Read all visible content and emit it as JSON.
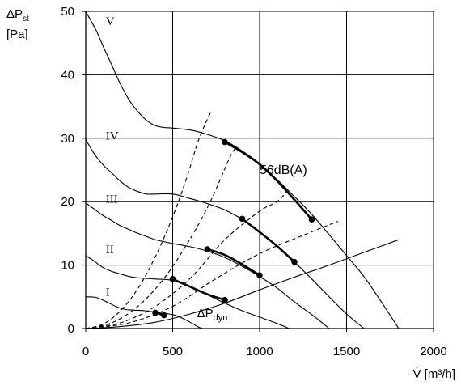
{
  "chart_data": {
    "type": "line",
    "title": "",
    "ylabel": {
      "main": "ΔP",
      "sub": "st",
      "unit": "[Pa]"
    },
    "xlabel": "V̇ [m³/h]",
    "xlim": [
      0,
      2000
    ],
    "ylim": [
      0,
      50
    ],
    "x_ticks": [
      0,
      500,
      1000,
      1500,
      2000
    ],
    "y_ticks": [
      0,
      10,
      20,
      30,
      40,
      50
    ],
    "grid": true,
    "colors": {
      "line": "#000000",
      "grid": "#000000",
      "background": "#ffffff"
    },
    "fan_curves": [
      {
        "label": "I",
        "label_at": [
          115,
          5.8
        ],
        "points": [
          [
            0,
            5
          ],
          [
            60,
            4.9
          ],
          [
            120,
            4.2
          ],
          [
            180,
            3.4
          ],
          [
            230,
            3.0
          ],
          [
            280,
            2.9
          ],
          [
            340,
            2.8
          ],
          [
            420,
            2.5
          ],
          [
            500,
            2.2
          ],
          [
            550,
            1.7
          ],
          [
            600,
            1.0
          ],
          [
            650,
            0.2
          ],
          [
            670,
            0
          ]
        ]
      },
      {
        "label": "II",
        "label_at": [
          115,
          12.5
        ],
        "points": [
          [
            0,
            11.5
          ],
          [
            50,
            10.6
          ],
          [
            100,
            9.6
          ],
          [
            150,
            9.0
          ],
          [
            200,
            8.6
          ],
          [
            250,
            8.2
          ],
          [
            300,
            8.0
          ],
          [
            350,
            7.9
          ],
          [
            400,
            7.8
          ],
          [
            500,
            7.6
          ],
          [
            600,
            6.6
          ],
          [
            700,
            5.3
          ],
          [
            800,
            4.0
          ],
          [
            900,
            2.8
          ],
          [
            1000,
            1.8
          ],
          [
            1100,
            0.8
          ],
          [
            1170,
            0
          ]
        ]
      },
      {
        "label": "III",
        "label_at": [
          115,
          20.5
        ],
        "points": [
          [
            0,
            19.8
          ],
          [
            50,
            18.8
          ],
          [
            100,
            17.8
          ],
          [
            150,
            17.0
          ],
          [
            200,
            16.2
          ],
          [
            250,
            15.6
          ],
          [
            300,
            15.0
          ],
          [
            350,
            14.5
          ],
          [
            400,
            14.0
          ],
          [
            450,
            13.7
          ],
          [
            500,
            13.4
          ],
          [
            600,
            12.9
          ],
          [
            700,
            12.2
          ],
          [
            800,
            11.2
          ],
          [
            900,
            9.8
          ],
          [
            1000,
            8.2
          ],
          [
            1100,
            6.4
          ],
          [
            1200,
            4.2
          ],
          [
            1300,
            2.2
          ],
          [
            1400,
            0
          ]
        ]
      },
      {
        "label": "IV",
        "label_at": [
          115,
          30.4
        ],
        "points": [
          [
            0,
            29.8
          ],
          [
            50,
            27.5
          ],
          [
            100,
            25.8
          ],
          [
            150,
            24.5
          ],
          [
            200,
            23.2
          ],
          [
            250,
            22.2
          ],
          [
            300,
            21.6
          ],
          [
            350,
            21.2
          ],
          [
            400,
            21.2
          ],
          [
            500,
            21.2
          ],
          [
            600,
            20.5
          ],
          [
            700,
            19.7
          ],
          [
            800,
            18.7
          ],
          [
            900,
            17.2
          ],
          [
            1000,
            15.2
          ],
          [
            1100,
            13.0
          ],
          [
            1200,
            10.5
          ],
          [
            1300,
            7.8
          ],
          [
            1400,
            5.0
          ],
          [
            1500,
            2.3
          ],
          [
            1600,
            0
          ]
        ]
      },
      {
        "label": "V",
        "label_at": [
          115,
          48.5
        ],
        "points": [
          [
            0,
            50
          ],
          [
            30,
            48.5
          ],
          [
            60,
            47.0
          ],
          [
            100,
            44.5
          ],
          [
            150,
            41.5
          ],
          [
            200,
            38.5
          ],
          [
            250,
            36.0
          ],
          [
            300,
            34.2
          ],
          [
            350,
            32.8
          ],
          [
            400,
            32.0
          ],
          [
            450,
            31.7
          ],
          [
            500,
            31.6
          ],
          [
            600,
            31.3
          ],
          [
            700,
            30.6
          ],
          [
            800,
            29.6
          ],
          [
            900,
            28.0
          ],
          [
            1000,
            26.0
          ],
          [
            1100,
            23.5
          ],
          [
            1200,
            20.8
          ],
          [
            1300,
            18.0
          ],
          [
            1400,
            14.8
          ],
          [
            1500,
            11.5
          ],
          [
            1600,
            8.2
          ],
          [
            1700,
            4.2
          ],
          [
            1800,
            0
          ]
        ]
      }
    ],
    "system_curves_dashed": [
      {
        "points": [
          [
            0,
            0
          ],
          [
            100,
            0.7
          ],
          [
            200,
            2.8
          ],
          [
            300,
            6.3
          ],
          [
            400,
            11.3
          ],
          [
            500,
            17.6
          ],
          [
            580,
            23.7
          ],
          [
            650,
            29.8
          ],
          [
            720,
            34.2
          ]
        ]
      },
      {
        "points": [
          [
            0,
            0
          ],
          [
            150,
            0.9
          ],
          [
            300,
            3.5
          ],
          [
            450,
            7.9
          ],
          [
            600,
            14.1
          ],
          [
            720,
            20.2
          ],
          [
            840,
            27.6
          ],
          [
            880,
            28.2
          ]
        ]
      },
      {
        "points": [
          [
            0,
            0
          ],
          [
            200,
            0.9
          ],
          [
            400,
            3.5
          ],
          [
            600,
            7.9
          ],
          [
            800,
            14.0
          ],
          [
            1000,
            18.5
          ],
          [
            1100,
            20.0
          ],
          [
            1160,
            21.7
          ]
        ]
      },
      {
        "points": [
          [
            0,
            0
          ],
          [
            250,
            0.9
          ],
          [
            500,
            3.5
          ],
          [
            750,
            7.9
          ],
          [
            1000,
            11.8
          ],
          [
            1250,
            14.7
          ],
          [
            1450,
            16.9
          ]
        ]
      }
    ],
    "dynamic_pressure_curve": {
      "label": "ΔP",
      "label_sub": "dyn",
      "label_at": [
        640,
        1.8
      ],
      "points": [
        [
          0,
          0
        ],
        [
          200,
          0.3
        ],
        [
          400,
          1.0
        ],
        [
          600,
          2.3
        ],
        [
          800,
          4.0
        ],
        [
          1000,
          6.1
        ],
        [
          1200,
          8.1
        ],
        [
          1400,
          10.0
        ],
        [
          1600,
          12.0
        ],
        [
          1800,
          14.0
        ]
      ]
    },
    "operating_segments": [
      {
        "points": [
          [
            400,
            2.5
          ],
          [
            450,
            2.1
          ]
        ]
      },
      {
        "points": [
          [
            500,
            7.8
          ],
          [
            600,
            6.6
          ],
          [
            700,
            5.4
          ],
          [
            800,
            4.5
          ]
        ]
      },
      {
        "points": [
          [
            700,
            12.5
          ],
          [
            800,
            11.6
          ],
          [
            900,
            10.1
          ],
          [
            1000,
            8.4
          ]
        ]
      },
      {
        "points": [
          [
            900,
            17.3
          ],
          [
            1000,
            15.2
          ],
          [
            1100,
            13.0
          ],
          [
            1200,
            10.5
          ]
        ]
      },
      {
        "points": [
          [
            800,
            29.4
          ],
          [
            900,
            27.8
          ],
          [
            1000,
            25.9
          ],
          [
            1100,
            23.3
          ],
          [
            1200,
            20.3
          ],
          [
            1300,
            17.2
          ]
        ]
      }
    ],
    "annotation": {
      "text": "56dB(A)",
      "at": [
        1000,
        25.0
      ]
    }
  }
}
